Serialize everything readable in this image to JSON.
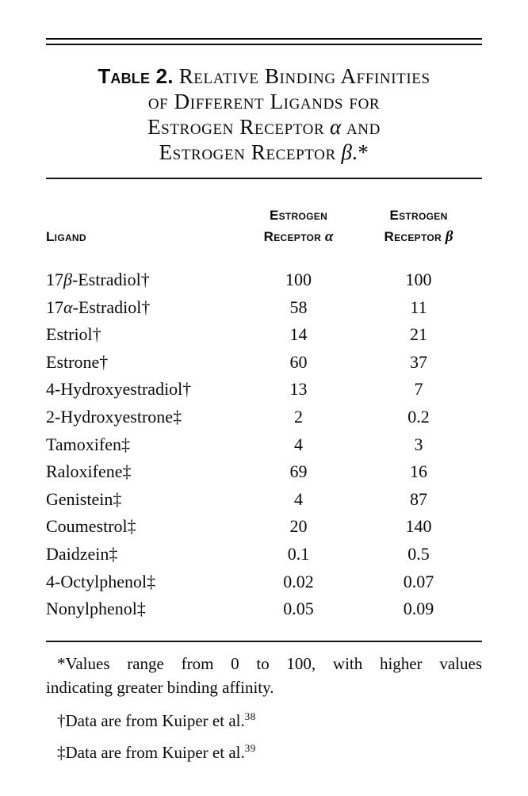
{
  "title": {
    "label": "Table 2.",
    "line1": "Relative Binding Affinities",
    "line2": "of Different Ligands for",
    "line3_pre": "Estrogen Receptor",
    "line3_greek": "α",
    "line3_post": "and",
    "line4_pre": "Estrogen Receptor",
    "line4_greek": "β",
    "line4_post": ".*"
  },
  "header": {
    "ligand": "Ligand",
    "col_alpha": {
      "line1": "Estrogen",
      "line2": "Receptor",
      "greek": "α"
    },
    "col_beta": {
      "line1": "Estrogen",
      "line2": "Receptor",
      "greek": "β"
    }
  },
  "table": {
    "rows": [
      {
        "pre": "17",
        "greek": "β",
        "post": "-Estradiol†",
        "er_alpha": "100",
        "er_beta": "100"
      },
      {
        "pre": "17",
        "greek": "α",
        "post": "-Estradiol†",
        "er_alpha": "58",
        "er_beta": "11"
      },
      {
        "pre": "Estriol†",
        "greek": "",
        "post": "",
        "er_alpha": "14",
        "er_beta": "21"
      },
      {
        "pre": "Estrone†",
        "greek": "",
        "post": "",
        "er_alpha": "60",
        "er_beta": "37"
      },
      {
        "pre": "4-Hydroxyestradiol†",
        "greek": "",
        "post": "",
        "er_alpha": "13",
        "er_beta": "7"
      },
      {
        "pre": "2-Hydroxyestrone‡",
        "greek": "",
        "post": "",
        "er_alpha": "2",
        "er_beta": "0.2"
      },
      {
        "pre": "Tamoxifen‡",
        "greek": "",
        "post": "",
        "er_alpha": "4",
        "er_beta": "3"
      },
      {
        "pre": "Raloxifene‡",
        "greek": "",
        "post": "",
        "er_alpha": "69",
        "er_beta": "16"
      },
      {
        "pre": "Genistein‡",
        "greek": "",
        "post": "",
        "er_alpha": "4",
        "er_beta": "87"
      },
      {
        "pre": "Coumestrol‡",
        "greek": "",
        "post": "",
        "er_alpha": "20",
        "er_beta": "140"
      },
      {
        "pre": "Daidzein‡",
        "greek": "",
        "post": "",
        "er_alpha": "0.1",
        "er_beta": "0.5"
      },
      {
        "pre": "4-Octylphenol‡",
        "greek": "",
        "post": "",
        "er_alpha": "0.02",
        "er_beta": "0.07"
      },
      {
        "pre": "Nonylphenol‡",
        "greek": "",
        "post": "",
        "er_alpha": "0.05",
        "er_beta": "0.09"
      }
    ]
  },
  "footnotes": {
    "star": {
      "line1": "*Values range from 0 to 100, with higher values",
      "line2": "indicating greater binding affinity."
    },
    "dagger": {
      "pre": "†Data are from Kuiper et al.",
      "ref": "38"
    },
    "ddagger": {
      "pre": "‡Data are from Kuiper et al.",
      "ref": "39"
    }
  },
  "colors": {
    "text": "#0b0b0b",
    "background": "#ffffff"
  },
  "chart_data": {
    "type": "table",
    "title": "Table 2. Relative Binding Affinities of Different Ligands for Estrogen Receptor α and Estrogen Receptor β.",
    "columns": [
      "Ligand",
      "Estrogen Receptor α",
      "Estrogen Receptor β"
    ],
    "categories": [
      "17β-Estradiol†",
      "17α-Estradiol†",
      "Estriol†",
      "Estrone†",
      "4-Hydroxyestradiol†",
      "2-Hydroxyestrone‡",
      "Tamoxifen‡",
      "Raloxifene‡",
      "Genistein‡",
      "Coumestrol‡",
      "Daidzein‡",
      "4-Octylphenol‡",
      "Nonylphenol‡"
    ],
    "series": [
      {
        "name": "Estrogen Receptor α",
        "values": [
          100,
          58,
          14,
          60,
          13,
          2,
          4,
          69,
          4,
          20,
          0.1,
          0.02,
          0.05
        ]
      },
      {
        "name": "Estrogen Receptor β",
        "values": [
          100,
          11,
          21,
          37,
          7,
          0.2,
          3,
          16,
          87,
          140,
          0.5,
          0.07,
          0.09
        ]
      }
    ]
  }
}
